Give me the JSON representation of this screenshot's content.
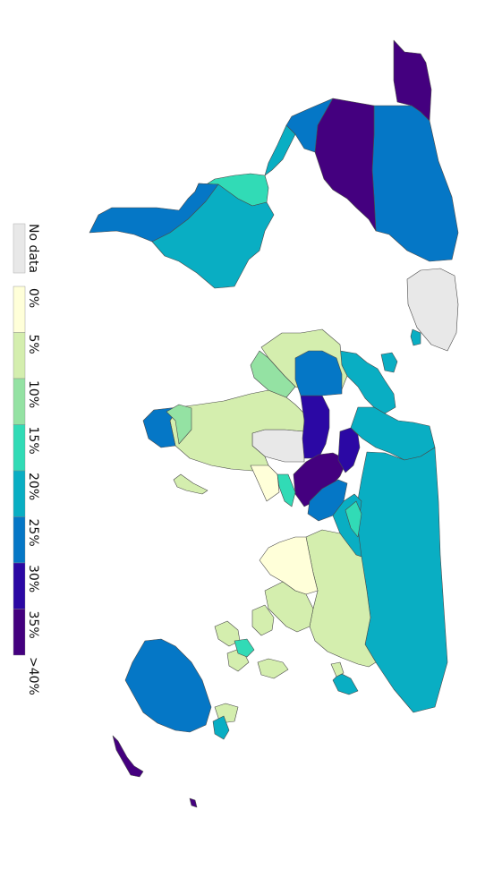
{
  "legend": {
    "no_data_label": "No data",
    "no_data_color": "#e8e8e8",
    "bins": [
      {
        "label": "0%",
        "color": "#ffffd9"
      },
      {
        "label": "5%",
        "color": "#d4eeae"
      },
      {
        "label": "10%",
        "color": "#94e2a3"
      },
      {
        "label": "15%",
        "color": "#31dbb6"
      },
      {
        "label": "20%",
        "color": "#09aec3"
      },
      {
        "label": "25%",
        "color": "#0577c6"
      },
      {
        "label": "30%",
        "color": "#2b08a4"
      },
      {
        "label": "35%",
        "color": "#44007f"
      },
      {
        "label": ">40%",
        "color": ""
      }
    ]
  },
  "regions": {
    "north_america": {
      "usa": "#44007f",
      "canada": "#0577c6",
      "alaska": "#44007f",
      "greenland": "#e8e8e8",
      "mexico": "#0577c6",
      "central_america": "#09aec3"
    },
    "south_america": {
      "brazil": "#09aec3",
      "west": "#0577c6",
      "north": "#31dbb6",
      "south": "#0577c6"
    },
    "europe": {
      "west": "#09aec3",
      "east": "#09aec3",
      "iceland": "#09aec3"
    },
    "africa": {
      "north": "#d4eeae",
      "libya_egypt": "#e8e8e8",
      "sahel": "#d4eeae",
      "west": "#94e2a3",
      "east": "#ffffd9",
      "south": "#0577c6",
      "madagascar": "#d4eeae"
    },
    "middle_east": {
      "saudi": "#44007f",
      "gulf": "#2b08a4",
      "turkey": "#0577c6",
      "iran": "#31dbb6"
    },
    "asia": {
      "russia": "#09aec3",
      "china": "#d4eeae",
      "india": "#ffffd9",
      "central": "#09aec3",
      "southeast": "#d4eeae",
      "japan": "#09aec3"
    },
    "oceania": {
      "australia": "#0577c6",
      "new_zealand": "#44007f"
    }
  }
}
